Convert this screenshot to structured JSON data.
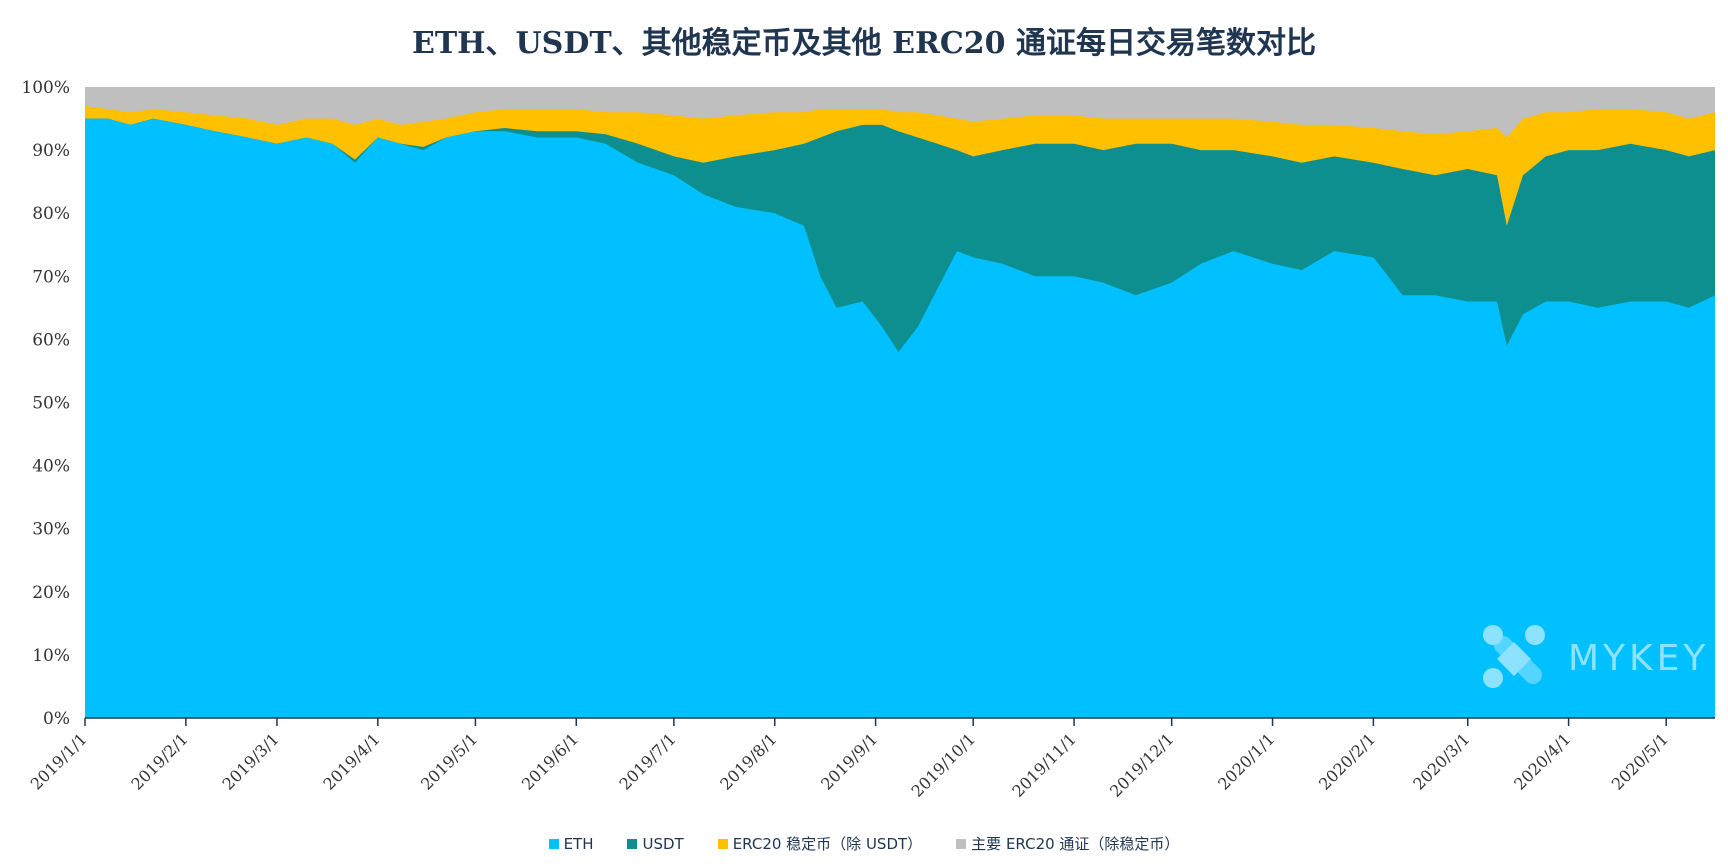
{
  "chart_data": {
    "type": "area",
    "stacked": true,
    "normalized": true,
    "title": "ETH、USDT、其他稳定币及其他 ERC20 通证每日交易笔数对比",
    "xlabel": "",
    "ylabel": "",
    "ylim": [
      0,
      100
    ],
    "y_ticks": [
      "0%",
      "10%",
      "20%",
      "30%",
      "40%",
      "50%",
      "60%",
      "70%",
      "80%",
      "90%",
      "100%"
    ],
    "x_range": [
      "2019-01-01",
      "2020-05-16"
    ],
    "x_ticks": [
      {
        "date": "2019-01-01",
        "label": "2019/1/1"
      },
      {
        "date": "2019-02-01",
        "label": "2019/2/1"
      },
      {
        "date": "2019-03-01",
        "label": "2019/3/1"
      },
      {
        "date": "2019-04-01",
        "label": "2019/4/1"
      },
      {
        "date": "2019-05-01",
        "label": "2019/5/1"
      },
      {
        "date": "2019-06-01",
        "label": "2019/6/1"
      },
      {
        "date": "2019-07-01",
        "label": "2019/7/1"
      },
      {
        "date": "2019-08-01",
        "label": "2019/8/1"
      },
      {
        "date": "2019-09-01",
        "label": "2019/9/1"
      },
      {
        "date": "2019-10-01",
        "label": "2019/10/1"
      },
      {
        "date": "2019-11-01",
        "label": "2019/11/1"
      },
      {
        "date": "2019-12-01",
        "label": "2019/12/1"
      },
      {
        "date": "2020-01-01",
        "label": "2020/1/1"
      },
      {
        "date": "2020-02-01",
        "label": "2020/2/1"
      },
      {
        "date": "2020-03-01",
        "label": "2020/3/1"
      },
      {
        "date": "2020-04-01",
        "label": "2020/4/1"
      },
      {
        "date": "2020-05-01",
        "label": "2020/5/1"
      }
    ],
    "series": [
      {
        "name": "ETH",
        "color": "#00c0ff",
        "cumulative_top": [
          [
            "2019-01-01",
            95
          ],
          [
            "2019-01-08",
            95
          ],
          [
            "2019-01-15",
            94
          ],
          [
            "2019-01-22",
            95
          ],
          [
            "2019-02-01",
            94
          ],
          [
            "2019-02-10",
            93
          ],
          [
            "2019-02-20",
            92
          ],
          [
            "2019-03-01",
            91
          ],
          [
            "2019-03-10",
            92
          ],
          [
            "2019-03-18",
            91
          ],
          [
            "2019-03-25",
            88
          ],
          [
            "2019-04-01",
            92
          ],
          [
            "2019-04-08",
            91
          ],
          [
            "2019-04-15",
            90
          ],
          [
            "2019-04-22",
            92
          ],
          [
            "2019-05-01",
            93
          ],
          [
            "2019-05-10",
            93
          ],
          [
            "2019-05-20",
            92
          ],
          [
            "2019-06-01",
            92
          ],
          [
            "2019-06-10",
            91
          ],
          [
            "2019-06-20",
            88
          ],
          [
            "2019-07-01",
            86
          ],
          [
            "2019-07-10",
            83
          ],
          [
            "2019-07-20",
            81
          ],
          [
            "2019-08-01",
            80
          ],
          [
            "2019-08-10",
            78
          ],
          [
            "2019-08-15",
            70
          ],
          [
            "2019-08-20",
            65
          ],
          [
            "2019-08-28",
            66
          ],
          [
            "2019-09-03",
            62
          ],
          [
            "2019-09-08",
            58
          ],
          [
            "2019-09-14",
            62
          ],
          [
            "2019-09-20",
            68
          ],
          [
            "2019-09-26",
            74
          ],
          [
            "2019-10-01",
            73
          ],
          [
            "2019-10-10",
            72
          ],
          [
            "2019-10-20",
            70
          ],
          [
            "2019-11-01",
            70
          ],
          [
            "2019-11-10",
            69
          ],
          [
            "2019-11-20",
            67
          ],
          [
            "2019-12-01",
            69
          ],
          [
            "2019-12-10",
            72
          ],
          [
            "2019-12-20",
            74
          ],
          [
            "2020-01-01",
            72
          ],
          [
            "2020-01-10",
            71
          ],
          [
            "2020-01-20",
            74
          ],
          [
            "2020-02-01",
            73
          ],
          [
            "2020-02-10",
            67
          ],
          [
            "2020-02-20",
            67
          ],
          [
            "2020-03-01",
            66
          ],
          [
            "2020-03-10",
            66
          ],
          [
            "2020-03-13",
            59
          ],
          [
            "2020-03-18",
            64
          ],
          [
            "2020-03-25",
            66
          ],
          [
            "2020-04-01",
            66
          ],
          [
            "2020-04-10",
            65
          ],
          [
            "2020-04-20",
            66
          ],
          [
            "2020-05-01",
            66
          ],
          [
            "2020-05-08",
            65
          ],
          [
            "2020-05-16",
            67
          ]
        ]
      },
      {
        "name": "USDT",
        "color": "#0e8f8f",
        "cumulative_top": [
          [
            "2019-01-01",
            95
          ],
          [
            "2019-01-08",
            95
          ],
          [
            "2019-01-15",
            94
          ],
          [
            "2019-01-22",
            95
          ],
          [
            "2019-02-01",
            94
          ],
          [
            "2019-02-10",
            93
          ],
          [
            "2019-02-20",
            92
          ],
          [
            "2019-03-01",
            91
          ],
          [
            "2019-03-10",
            92
          ],
          [
            "2019-03-18",
            91
          ],
          [
            "2019-03-25",
            88.5
          ],
          [
            "2019-04-01",
            92
          ],
          [
            "2019-04-08",
            91
          ],
          [
            "2019-04-15",
            90.5
          ],
          [
            "2019-04-22",
            92
          ],
          [
            "2019-05-01",
            93
          ],
          [
            "2019-05-10",
            93.5
          ],
          [
            "2019-05-20",
            93
          ],
          [
            "2019-06-01",
            93
          ],
          [
            "2019-06-10",
            92.5
          ],
          [
            "2019-06-20",
            91
          ],
          [
            "2019-07-01",
            89
          ],
          [
            "2019-07-10",
            88
          ],
          [
            "2019-07-20",
            89
          ],
          [
            "2019-08-01",
            90
          ],
          [
            "2019-08-10",
            91
          ],
          [
            "2019-08-15",
            92
          ],
          [
            "2019-08-20",
            93
          ],
          [
            "2019-08-28",
            94
          ],
          [
            "2019-09-03",
            94
          ],
          [
            "2019-09-08",
            93
          ],
          [
            "2019-09-14",
            92
          ],
          [
            "2019-09-20",
            91
          ],
          [
            "2019-09-26",
            90
          ],
          [
            "2019-10-01",
            89
          ],
          [
            "2019-10-10",
            90
          ],
          [
            "2019-10-20",
            91
          ],
          [
            "2019-11-01",
            91
          ],
          [
            "2019-11-10",
            90
          ],
          [
            "2019-11-20",
            91
          ],
          [
            "2019-12-01",
            91
          ],
          [
            "2019-12-10",
            90
          ],
          [
            "2019-12-20",
            90
          ],
          [
            "2020-01-01",
            89
          ],
          [
            "2020-01-10",
            88
          ],
          [
            "2020-01-20",
            89
          ],
          [
            "2020-02-01",
            88
          ],
          [
            "2020-02-10",
            87
          ],
          [
            "2020-02-20",
            86
          ],
          [
            "2020-03-01",
            87
          ],
          [
            "2020-03-10",
            86
          ],
          [
            "2020-03-13",
            78
          ],
          [
            "2020-03-18",
            86
          ],
          [
            "2020-03-25",
            89
          ],
          [
            "2020-04-01",
            90
          ],
          [
            "2020-04-10",
            90
          ],
          [
            "2020-04-20",
            91
          ],
          [
            "2020-05-01",
            90
          ],
          [
            "2020-05-08",
            89
          ],
          [
            "2020-05-16",
            90
          ]
        ]
      },
      {
        "name": "ERC20 稳定币（除 USDT）",
        "color": "#ffc000",
        "cumulative_top": [
          [
            "2019-01-01",
            97
          ],
          [
            "2019-01-08",
            96.5
          ],
          [
            "2019-01-15",
            96
          ],
          [
            "2019-01-22",
            96.5
          ],
          [
            "2019-02-01",
            96
          ],
          [
            "2019-02-10",
            95.5
          ],
          [
            "2019-02-20",
            95
          ],
          [
            "2019-03-01",
            94
          ],
          [
            "2019-03-10",
            95
          ],
          [
            "2019-03-18",
            95
          ],
          [
            "2019-03-25",
            94
          ],
          [
            "2019-04-01",
            95
          ],
          [
            "2019-04-08",
            94
          ],
          [
            "2019-04-15",
            94.5
          ],
          [
            "2019-04-22",
            95
          ],
          [
            "2019-05-01",
            96
          ],
          [
            "2019-05-10",
            96.5
          ],
          [
            "2019-05-20",
            96.5
          ],
          [
            "2019-06-01",
            96.5
          ],
          [
            "2019-06-10",
            96
          ],
          [
            "2019-06-20",
            96
          ],
          [
            "2019-07-01",
            95.5
          ],
          [
            "2019-07-10",
            95
          ],
          [
            "2019-07-20",
            95.5
          ],
          [
            "2019-08-01",
            96
          ],
          [
            "2019-08-10",
            96
          ],
          [
            "2019-08-15",
            96.5
          ],
          [
            "2019-08-20",
            96.5
          ],
          [
            "2019-08-28",
            96.5
          ],
          [
            "2019-09-03",
            96.5
          ],
          [
            "2019-09-08",
            96
          ],
          [
            "2019-09-14",
            96
          ],
          [
            "2019-09-20",
            95.5
          ],
          [
            "2019-09-26",
            95
          ],
          [
            "2019-10-01",
            94.5
          ],
          [
            "2019-10-10",
            95
          ],
          [
            "2019-10-20",
            95.5
          ],
          [
            "2019-11-01",
            95.5
          ],
          [
            "2019-11-10",
            95
          ],
          [
            "2019-11-20",
            95
          ],
          [
            "2019-12-01",
            95
          ],
          [
            "2019-12-10",
            95
          ],
          [
            "2019-12-20",
            95
          ],
          [
            "2020-01-01",
            94.5
          ],
          [
            "2020-01-10",
            94
          ],
          [
            "2020-01-20",
            94
          ],
          [
            "2020-02-01",
            93.5
          ],
          [
            "2020-02-10",
            93
          ],
          [
            "2020-02-20",
            92.5
          ],
          [
            "2020-03-01",
            93
          ],
          [
            "2020-03-10",
            93.5
          ],
          [
            "2020-03-13",
            92
          ],
          [
            "2020-03-18",
            95
          ],
          [
            "2020-03-25",
            96
          ],
          [
            "2020-04-01",
            96
          ],
          [
            "2020-04-10",
            96.5
          ],
          [
            "2020-04-20",
            96.5
          ],
          [
            "2020-05-01",
            96
          ],
          [
            "2020-05-08",
            95
          ],
          [
            "2020-05-16",
            96
          ]
        ]
      },
      {
        "name": "主要 ERC20 通证（除稳定币）",
        "color": "#bfbfbf",
        "cumulative_top": [
          [
            "2019-01-01",
            100
          ],
          [
            "2020-05-16",
            100
          ]
        ]
      }
    ]
  },
  "legend": {
    "items": [
      {
        "label": "ETH",
        "color": "#00c0ff"
      },
      {
        "label": "USDT",
        "color": "#0e8f8f"
      },
      {
        "label": "ERC20 稳定币（除 USDT）",
        "color": "#ffc000"
      },
      {
        "label": "主要 ERC20 通证（除稳定币）",
        "color": "#bfbfbf"
      }
    ]
  },
  "watermark": {
    "text": "MYKEY"
  }
}
